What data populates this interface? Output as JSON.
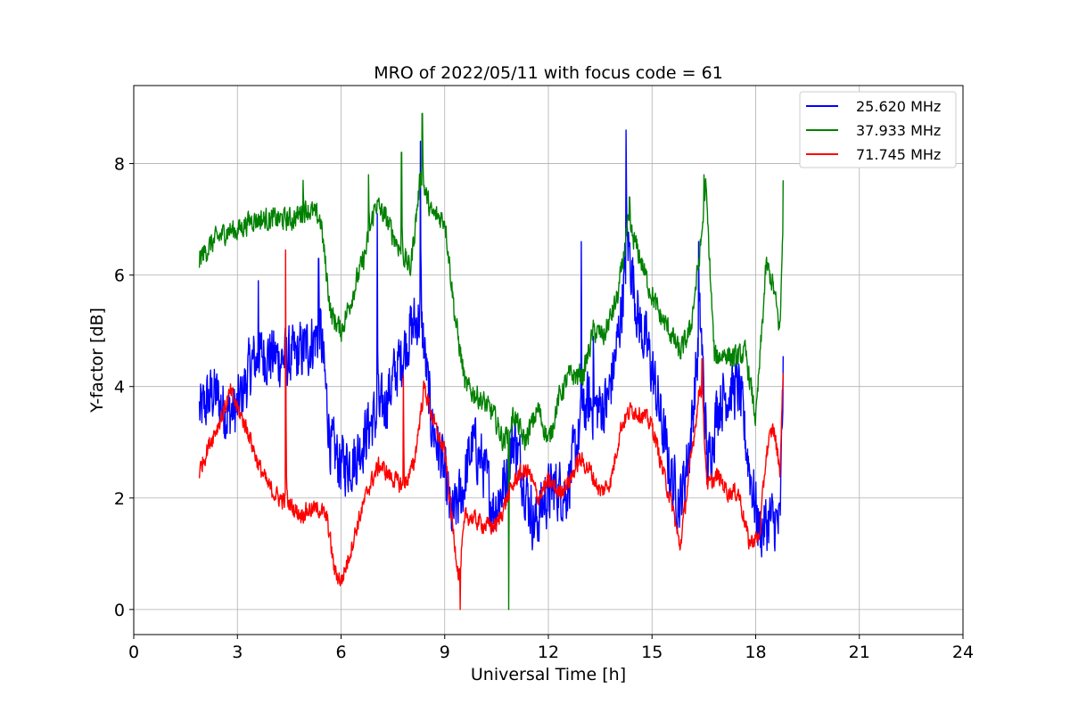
{
  "chart_data": {
    "type": "line",
    "title": "MRO of 2022/05/11 with focus code = 61",
    "xlabel": "Universal Time [h]",
    "ylabel": "Y-factor [dB]",
    "xlim": [
      0,
      24
    ],
    "ylim": [
      -0.45,
      9.4
    ],
    "xticks": [
      0,
      3,
      6,
      9,
      12,
      15,
      18,
      21,
      24
    ],
    "yticks": [
      0,
      2,
      4,
      6,
      8
    ],
    "grid": true,
    "legend_position": "top-right",
    "series": [
      {
        "name": "25.620 MHz",
        "color": "#0000ff",
        "x": [
          1.9,
          2.3,
          2.7,
          3.0,
          3.4,
          3.8,
          4.2,
          4.6,
          5.0,
          5.4,
          5.7,
          6.0,
          6.4,
          6.8,
          7.2,
          7.6,
          8.0,
          8.3,
          8.6,
          8.9,
          9.2,
          9.5,
          9.8,
          10.1,
          10.4,
          10.7,
          11.0,
          11.3,
          11.6,
          11.9,
          12.2,
          12.5,
          12.8,
          13.1,
          13.4,
          13.7,
          14.0,
          14.3,
          14.6,
          14.9,
          15.2,
          15.5,
          15.8,
          16.1,
          16.4,
          16.6,
          16.9,
          17.2,
          17.5,
          17.8,
          18.1,
          18.4,
          18.7,
          18.8
        ],
        "y": [
          3.5,
          3.9,
          3.5,
          3.6,
          4.4,
          4.6,
          4.5,
          4.5,
          4.7,
          5.0,
          2.9,
          2.6,
          2.7,
          3.3,
          3.6,
          4.3,
          5.0,
          5.3,
          3.4,
          2.7,
          1.6,
          2.1,
          3.0,
          2.6,
          1.8,
          2.2,
          3.1,
          2.3,
          1.5,
          2.0,
          2.2,
          2.1,
          2.9,
          3.7,
          3.6,
          3.7,
          4.8,
          6.6,
          5.2,
          4.6,
          3.6,
          2.5,
          1.9,
          3.0,
          5.2,
          2.5,
          3.7,
          3.9,
          4.0,
          2.6,
          1.4,
          1.6,
          1.5,
          4.6
        ],
        "peaks": [
          [
            14.25,
            8.6
          ],
          [
            8.3,
            8.4
          ],
          [
            7.05,
            7.1
          ],
          [
            16.35,
            6.6
          ],
          [
            12.95,
            6.6
          ],
          [
            5.35,
            6.3
          ],
          [
            3.6,
            5.9
          ],
          [
            13.3,
            4.9
          ]
        ]
      },
      {
        "name": "37.933 MHz",
        "color": "#008000",
        "x": [
          1.9,
          2.3,
          2.7,
          3.0,
          3.4,
          3.8,
          4.2,
          4.6,
          5.0,
          5.4,
          5.7,
          6.0,
          6.3,
          6.7,
          7.0,
          7.3,
          7.6,
          8.0,
          8.3,
          8.6,
          9.0,
          9.3,
          9.6,
          10.0,
          10.4,
          10.7,
          11.0,
          11.3,
          11.7,
          12.0,
          12.3,
          12.6,
          13.0,
          13.3,
          13.6,
          14.0,
          14.3,
          14.6,
          14.9,
          15.2,
          15.5,
          15.8,
          16.1,
          16.4,
          16.55,
          16.8,
          17.1,
          17.4,
          17.7,
          18.0,
          18.3,
          18.5,
          18.7,
          18.8
        ],
        "y": [
          6.3,
          6.6,
          6.8,
          6.8,
          7.0,
          7.0,
          7.0,
          7.0,
          7.2,
          7.0,
          5.3,
          5.0,
          5.6,
          6.4,
          7.3,
          7.0,
          6.6,
          6.1,
          7.8,
          7.1,
          7.0,
          5.2,
          4.0,
          3.8,
          3.5,
          3.0,
          3.5,
          3.0,
          3.6,
          3.0,
          3.8,
          4.2,
          4.2,
          5.0,
          4.9,
          5.6,
          6.9,
          6.4,
          5.8,
          5.3,
          5.0,
          4.6,
          5.0,
          6.5,
          7.6,
          4.5,
          4.6,
          4.5,
          4.6,
          3.4,
          6.2,
          5.8,
          5.0,
          7.4
        ],
        "peaks": [
          [
            8.35,
            8.9
          ],
          [
            7.75,
            8.2
          ],
          [
            6.8,
            7.8
          ],
          [
            4.9,
            7.7
          ],
          [
            16.5,
            7.8
          ],
          [
            18.8,
            7.7
          ],
          [
            14.35,
            7.4
          ],
          [
            10.85,
            0.0
          ]
        ]
      },
      {
        "name": "71.745 MHz",
        "color": "#ff0000",
        "x": [
          1.9,
          2.2,
          2.5,
          2.8,
          3.0,
          3.3,
          3.6,
          3.9,
          4.2,
          4.5,
          4.8,
          5.1,
          5.4,
          5.6,
          5.8,
          6.0,
          6.2,
          6.5,
          6.8,
          7.1,
          7.4,
          7.8,
          8.1,
          8.4,
          8.7,
          9.0,
          9.2,
          9.4,
          9.6,
          9.9,
          10.2,
          10.5,
          10.8,
          11.1,
          11.4,
          11.7,
          12.0,
          12.3,
          12.6,
          12.9,
          13.2,
          13.5,
          13.8,
          14.1,
          14.4,
          14.7,
          15.0,
          15.3,
          15.6,
          15.8,
          16.1,
          16.4,
          16.6,
          16.9,
          17.2,
          17.5,
          17.8,
          18.1,
          18.3,
          18.5,
          18.7,
          18.8
        ],
        "y": [
          2.5,
          3.0,
          3.4,
          3.9,
          3.6,
          3.2,
          2.6,
          2.2,
          2.0,
          1.9,
          1.7,
          1.8,
          1.8,
          1.6,
          0.7,
          0.5,
          0.9,
          1.6,
          2.2,
          2.6,
          2.4,
          2.2,
          2.6,
          4.0,
          3.3,
          2.8,
          1.6,
          0.6,
          1.7,
          1.6,
          1.5,
          1.5,
          2.0,
          2.4,
          2.5,
          2.0,
          2.3,
          2.1,
          2.3,
          2.7,
          2.5,
          2.1,
          2.3,
          3.3,
          3.6,
          3.5,
          3.3,
          2.5,
          1.8,
          1.1,
          2.6,
          4.1,
          2.2,
          2.4,
          2.1,
          2.1,
          1.2,
          1.3,
          2.8,
          3.3,
          2.5,
          4.5
        ],
        "peaks": [
          [
            4.4,
            6.45
          ],
          [
            7.8,
            4.2
          ],
          [
            9.45,
            0.0
          ],
          [
            16.45,
            4.5
          ]
        ]
      }
    ]
  }
}
